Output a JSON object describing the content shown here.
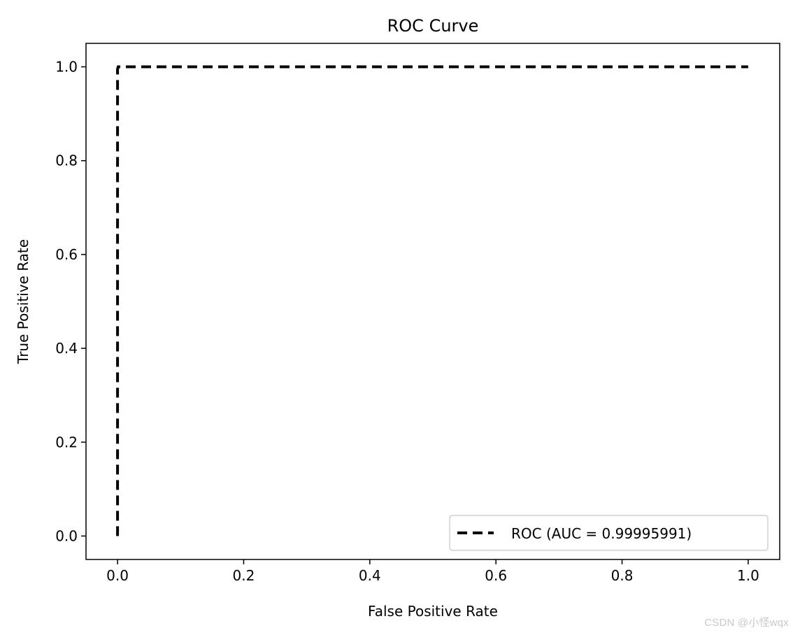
{
  "chart_data": {
    "type": "line",
    "title": "ROC Curve",
    "xlabel": "False Positive Rate",
    "ylabel": "True Positive Rate",
    "xlim": [
      -0.05,
      1.05
    ],
    "ylim": [
      -0.05,
      1.05
    ],
    "x_ticks": [
      0.0,
      0.2,
      0.4,
      0.6,
      0.8,
      1.0
    ],
    "y_ticks": [
      0.0,
      0.2,
      0.4,
      0.6,
      0.8,
      1.0
    ],
    "x_tick_labels": [
      "0.0",
      "0.2",
      "0.4",
      "0.6",
      "0.8",
      "1.0"
    ],
    "y_tick_labels": [
      "0.0",
      "0.2",
      "0.4",
      "0.6",
      "0.8",
      "1.0"
    ],
    "grid": false,
    "legend_position": "bottom-right",
    "series": [
      {
        "name": "ROC (AUC = 0.99995991)",
        "line_style": "dashed",
        "color": "#000000",
        "x": [
          0.0,
          0.0,
          0.001,
          1.0
        ],
        "y": [
          0.0,
          0.995,
          1.0,
          1.0
        ]
      }
    ]
  },
  "watermark": "CSDN @小怪wqx"
}
